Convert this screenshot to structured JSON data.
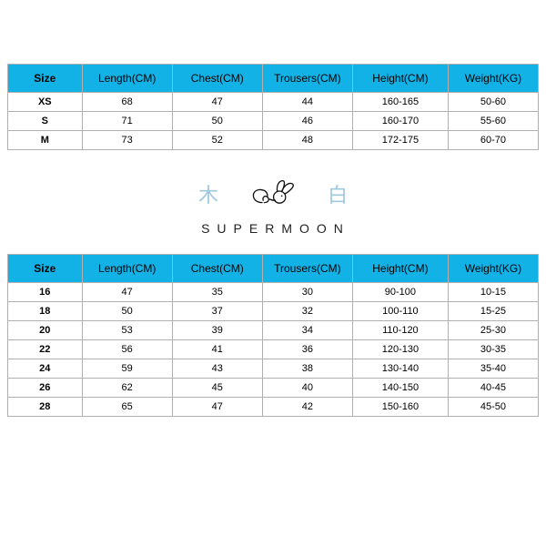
{
  "theme": {
    "header_bg": "#12b2e6",
    "header_text": "#000000",
    "border_color": "#b0b0b0",
    "cell_bg": "#ffffff",
    "cell_text": "#000000",
    "header_fontsize": 12,
    "cell_fontsize": 11,
    "glyph_color": "#9ec8e0"
  },
  "table1": {
    "type": "table",
    "columns": [
      "Size",
      "Length(CM)",
      "Chest(CM)",
      "Trousers(CM)",
      "Height(CM)",
      "Weight(KG)"
    ],
    "col_widths_pct": [
      14,
      17,
      17,
      17,
      18,
      17
    ],
    "rows": [
      [
        "XS",
        "68",
        "47",
        "44",
        "160-165",
        "50-60"
      ],
      [
        "S",
        "71",
        "50",
        "46",
        "160-170",
        "55-60"
      ],
      [
        "M",
        "73",
        "52",
        "48",
        "172-175",
        "60-70"
      ]
    ]
  },
  "logo": {
    "left_glyph": "木",
    "right_glyph": "白",
    "brand_text": "SUPERMOON",
    "rabbit_stroke": "#111111",
    "rabbit_stroke_width": 2.2
  },
  "table2": {
    "type": "table",
    "columns": [
      "Size",
      "Length(CM)",
      "Chest(CM)",
      "Trousers(CM)",
      "Height(CM)",
      "Weight(KG)"
    ],
    "col_widths_pct": [
      14,
      17,
      17,
      17,
      18,
      17
    ],
    "rows": [
      [
        "16",
        "47",
        "35",
        "30",
        "90-100",
        "10-15"
      ],
      [
        "18",
        "50",
        "37",
        "32",
        "100-110",
        "15-25"
      ],
      [
        "20",
        "53",
        "39",
        "34",
        "110-120",
        "25-30"
      ],
      [
        "22",
        "56",
        "41",
        "36",
        "120-130",
        "30-35"
      ],
      [
        "24",
        "59",
        "43",
        "38",
        "130-140",
        "35-40"
      ],
      [
        "26",
        "62",
        "45",
        "40",
        "140-150",
        "40-45"
      ],
      [
        "28",
        "65",
        "47",
        "42",
        "150-160",
        "45-50"
      ]
    ]
  }
}
